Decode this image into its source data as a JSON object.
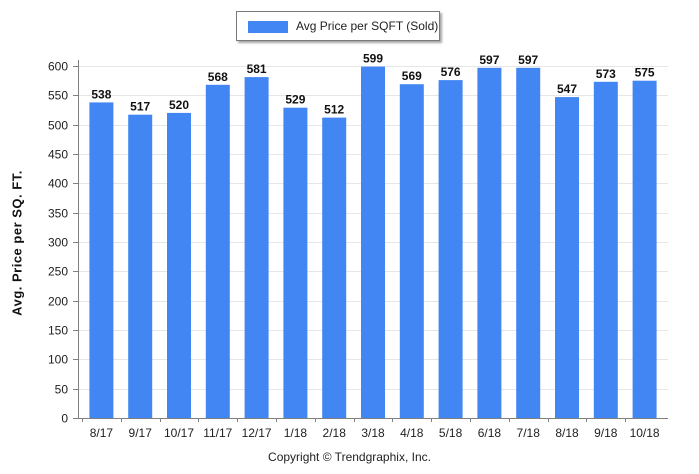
{
  "legend": {
    "label": "Avg Price per SQFT (Sold)"
  },
  "footer": {
    "copyright": "Copyright © Trendgraphix, Inc."
  },
  "colors": {
    "bar": "#4286f4",
    "axis": "#808080",
    "gridline": "#e6e6e6"
  },
  "chart_data": {
    "type": "bar",
    "title": "",
    "xlabel": "",
    "ylabel": "Avg. Price per SQ. FT.",
    "ylim": [
      0,
      600
    ],
    "yticks": [
      0,
      50,
      100,
      150,
      200,
      250,
      300,
      350,
      400,
      450,
      500,
      550,
      600
    ],
    "grid": true,
    "legend_position": "top-center",
    "categories": [
      "8/17",
      "9/17",
      "10/17",
      "11/17",
      "12/17",
      "1/18",
      "2/18",
      "3/18",
      "4/18",
      "5/18",
      "6/18",
      "7/18",
      "8/18",
      "9/18",
      "10/18"
    ],
    "series": [
      {
        "name": "Avg Price per SQFT (Sold)",
        "values": [
          538,
          517,
          520,
          568,
          581,
          529,
          512,
          599,
          569,
          576,
          597,
          597,
          547,
          573,
          575
        ]
      }
    ]
  }
}
